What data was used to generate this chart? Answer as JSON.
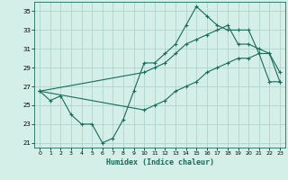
{
  "xlabel": "Humidex (Indice chaleur)",
  "bg_color": "#d4eee8",
  "line_color": "#1a6b5a",
  "grid_color": "#aed4cc",
  "xlim": [
    -0.5,
    23.5
  ],
  "ylim": [
    20.5,
    36.0
  ],
  "xticks": [
    0,
    1,
    2,
    3,
    4,
    5,
    6,
    7,
    8,
    9,
    10,
    11,
    12,
    13,
    14,
    15,
    16,
    17,
    18,
    19,
    20,
    21,
    22,
    23
  ],
  "yticks": [
    21,
    23,
    25,
    27,
    29,
    31,
    33,
    35
  ],
  "line1_x": [
    0,
    1,
    2,
    3,
    4,
    5,
    6,
    7,
    8,
    9,
    10,
    11,
    12,
    13,
    14,
    15,
    16,
    17,
    18,
    19,
    20,
    21,
    22,
    23
  ],
  "line1_y": [
    26.5,
    25.5,
    26.0,
    24.0,
    23.0,
    23.0,
    21.0,
    21.5,
    23.5,
    26.5,
    29.5,
    29.5,
    30.5,
    31.5,
    33.5,
    35.5,
    34.5,
    33.5,
    33.0,
    33.0,
    33.0,
    30.5,
    30.5,
    28.5
  ],
  "line2_x": [
    0,
    10,
    11,
    12,
    13,
    14,
    15,
    16,
    17,
    18,
    19,
    20,
    21,
    22,
    23
  ],
  "line2_y": [
    26.5,
    28.5,
    29.0,
    29.5,
    30.5,
    31.5,
    32.0,
    32.5,
    33.0,
    33.5,
    31.5,
    31.5,
    31.0,
    30.5,
    27.5
  ],
  "line3_x": [
    0,
    10,
    11,
    12,
    13,
    14,
    15,
    16,
    17,
    18,
    19,
    20,
    21,
    22,
    23
  ],
  "line3_y": [
    26.5,
    24.5,
    25.0,
    25.5,
    26.5,
    27.0,
    27.5,
    28.5,
    29.0,
    29.5,
    30.0,
    30.0,
    30.5,
    27.5,
    27.5
  ]
}
